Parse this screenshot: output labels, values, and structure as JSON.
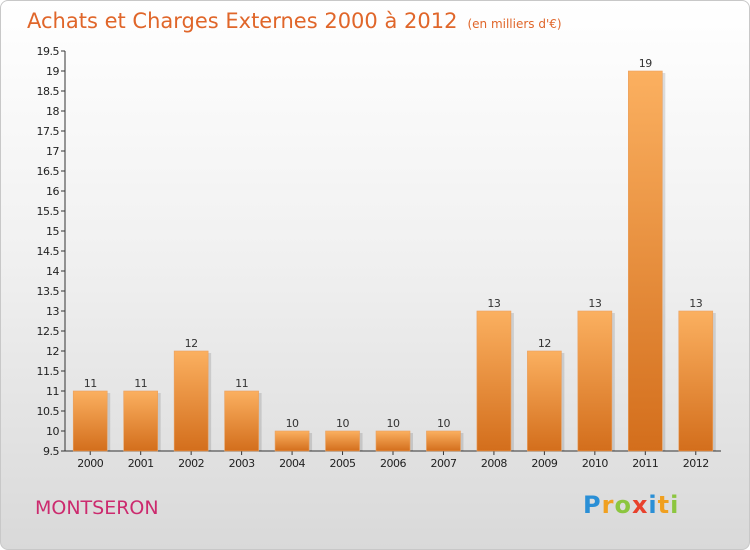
{
  "chart_data": {
    "type": "bar",
    "title": "Achats et Charges Externes 2000 à 2012",
    "subtitle": "(en milliers d'€)",
    "categories": [
      "2000",
      "2001",
      "2002",
      "2003",
      "2004",
      "2005",
      "2006",
      "2007",
      "2008",
      "2009",
      "2010",
      "2011",
      "2012"
    ],
    "values": [
      11,
      11,
      12,
      11,
      10,
      10,
      10,
      10,
      13,
      12,
      13,
      19,
      13
    ],
    "ylim": [
      9.5,
      19.5
    ],
    "ytick_step": 0.5,
    "grid": false,
    "legend": "none"
  },
  "footer": {
    "commune": "MONTSERON",
    "logo_letters": [
      "P",
      "r",
      "o",
      "x",
      "i",
      "t",
      "i"
    ],
    "logo_colors": [
      "#2a8fd6",
      "#f0a020",
      "#8cc63f",
      "#e8412c",
      "#2a8fd6",
      "#f0a020",
      "#8cc63f"
    ]
  },
  "colors": {
    "bar_light": "#fbb060",
    "bar_dark": "#d36e1c",
    "title": "#e0662a",
    "commune": "#cc2a6e"
  }
}
